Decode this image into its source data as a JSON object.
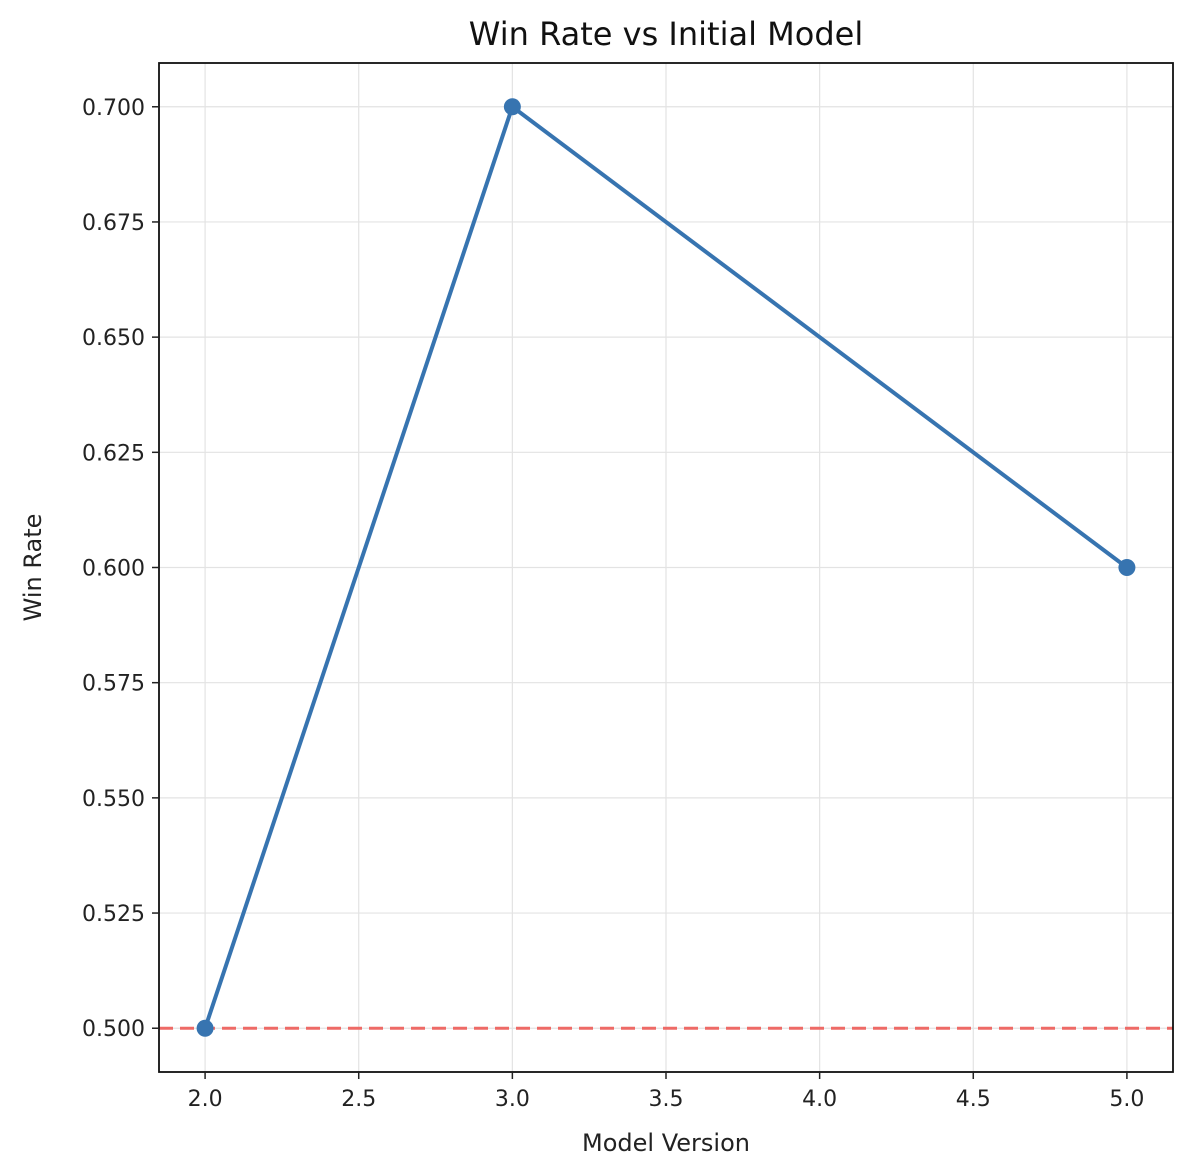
{
  "chart_data": {
    "type": "line",
    "title": "Win Rate vs Initial Model",
    "xlabel": "Model Version",
    "ylabel": "Win Rate",
    "xlim": [
      1.85,
      5.15
    ],
    "ylim": [
      0.4905,
      0.7095
    ],
    "xticks": [
      "2.0",
      "2.5",
      "3.0",
      "3.5",
      "4.0",
      "4.5",
      "5.0"
    ],
    "yticks": [
      "0.500",
      "0.525",
      "0.550",
      "0.575",
      "0.600",
      "0.625",
      "0.650",
      "0.675",
      "0.700"
    ],
    "grid": true,
    "series": [
      {
        "x": [
          2.0,
          3.0,
          5.0
        ],
        "y": [
          0.5,
          0.7,
          0.6
        ],
        "color": "#3774b0",
        "marker": "circle"
      }
    ],
    "reference_lines": [
      {
        "orientation": "horizontal",
        "y": 0.5,
        "style": "dashed",
        "color": "#ee6a66"
      }
    ]
  }
}
